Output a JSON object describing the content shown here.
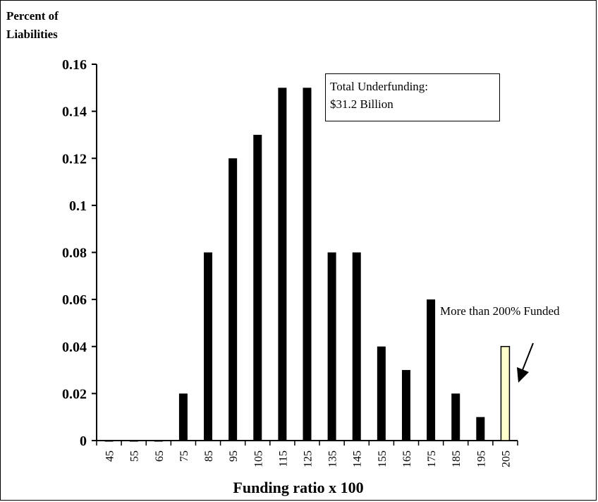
{
  "chart_data": {
    "type": "bar",
    "ylabel_lines": [
      "Percent of",
      "Liabilities"
    ],
    "xlabel": "Funding ratio x 100",
    "ylim": [
      0,
      0.16
    ],
    "yticks": [
      "0",
      "0.02",
      "0.04",
      "0.06",
      "0.08",
      "0.1",
      "0.12",
      "0.14",
      "0.16"
    ],
    "categories": [
      "45",
      "55",
      "65",
      "75",
      "85",
      "95",
      "105",
      "115",
      "125",
      "135",
      "145",
      "155",
      "165",
      "175",
      "185",
      "195",
      "205"
    ],
    "values": [
      0,
      0,
      0,
      0.02,
      0.08,
      0.12,
      0.13,
      0.15,
      0.15,
      0.08,
      0.08,
      0.04,
      0.03,
      0.06,
      0.02,
      0.01,
      0.04
    ],
    "highlight_category": "205",
    "colors": {
      "bar": "#000000",
      "highlight": "#ffffcc"
    },
    "annotations": {
      "total_line1": "Total Underfunding:",
      "total_line2": "$31.2 Billion",
      "more_than": "More than 200% Funded"
    },
    "grid": false,
    "legend": "none"
  }
}
